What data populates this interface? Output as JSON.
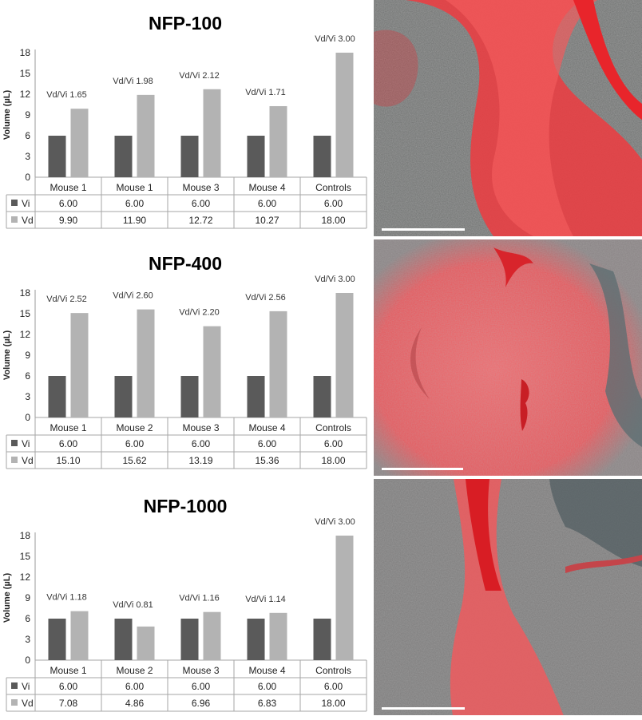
{
  "colors": {
    "vi": "#5a5a5a",
    "vd": "#b3b3b3",
    "grid_border": "#a6a6a6",
    "stain": "#e8252b",
    "tissue": "#8c8c8c",
    "scale_bar": "#ffffff"
  },
  "chart_data": [
    {
      "type": "bar",
      "title": "NFP-100",
      "ylabel": "Volume (µL)",
      "ylim": [
        0,
        18
      ],
      "yticks": [
        "0",
        "3",
        "6",
        "9",
        "12",
        "15",
        "18"
      ],
      "categories": [
        "Mouse 1",
        "Mouse 1",
        "Mouse 3",
        "Mouse 4",
        "Controls"
      ],
      "series": [
        {
          "name": "Vi",
          "values": [
            6.0,
            6.0,
            6.0,
            6.0,
            6.0
          ],
          "labels": [
            "6.00",
            "6.00",
            "6.00",
            "6.00",
            "6.00"
          ]
        },
        {
          "name": "Vd",
          "values": [
            9.9,
            11.9,
            12.72,
            10.27,
            18.0
          ],
          "labels": [
            "9.90",
            "11.90",
            "12.72",
            "10.27",
            "18.00"
          ]
        }
      ],
      "annotations": [
        "Vd/Vi 1.65",
        "Vd/Vi 1.98",
        "Vd/Vi 2.12",
        "Vd/Vi 1.71",
        "Vd/Vi 3.00"
      ],
      "grid": false,
      "legend": "data-table"
    },
    {
      "type": "bar",
      "title": "NFP-400",
      "ylabel": "Volume (µL)",
      "ylim": [
        0,
        18
      ],
      "yticks": [
        "0",
        "3",
        "6",
        "9",
        "12",
        "15",
        "18"
      ],
      "categories": [
        "Mouse 1",
        "Mouse 2",
        "Mouse 3",
        "Mouse 4",
        "Controls"
      ],
      "series": [
        {
          "name": "Vi",
          "values": [
            6.0,
            6.0,
            6.0,
            6.0,
            6.0
          ],
          "labels": [
            "6.00",
            "6.00",
            "6.00",
            "6.00",
            "6.00"
          ]
        },
        {
          "name": "Vd",
          "values": [
            15.1,
            15.62,
            13.19,
            15.36,
            18.0
          ],
          "labels": [
            "15.10",
            "15.62",
            "13.19",
            "15.36",
            "18.00"
          ]
        }
      ],
      "annotations": [
        "Vd/Vi 2.52",
        "Vd/Vi 2.60",
        "Vd/Vi 2.20",
        "Vd/Vi 2.56",
        "Vd/Vi 3.00"
      ],
      "grid": false,
      "legend": "data-table"
    },
    {
      "type": "bar",
      "title": "NFP-1000",
      "ylabel": "Volume (µL)",
      "ylim": [
        0,
        18
      ],
      "yticks": [
        "0",
        "3",
        "6",
        "9",
        "12",
        "15",
        "18"
      ],
      "categories": [
        "Mouse 1",
        "Mouse 2",
        "Mouse 3",
        "Mouse 4",
        "Controls"
      ],
      "series": [
        {
          "name": "Vi",
          "values": [
            6.0,
            6.0,
            6.0,
            6.0,
            6.0
          ],
          "labels": [
            "6.00",
            "6.00",
            "6.00",
            "6.00",
            "6.00"
          ]
        },
        {
          "name": "Vd",
          "values": [
            7.08,
            4.86,
            6.96,
            6.83,
            18.0
          ],
          "labels": [
            "7.08",
            "4.86",
            "6.96",
            "6.83",
            "18.00"
          ]
        }
      ],
      "annotations": [
        "Vd/Vi 1.18",
        "Vd/Vi 0.81",
        "Vd/Vi 1.16",
        "Vd/Vi 1.14",
        "Vd/Vi 3.00"
      ],
      "grid": false,
      "legend": "data-table"
    }
  ],
  "micrographs": [
    {
      "name": "micrograph-nfp-100",
      "description_icon": "fluorescent-tissue-image",
      "scale_bar": true
    },
    {
      "name": "micrograph-nfp-400",
      "description_icon": "fluorescent-tissue-image",
      "scale_bar": true
    },
    {
      "name": "micrograph-nfp-1000",
      "description_icon": "fluorescent-tissue-image",
      "scale_bar": true
    }
  ]
}
